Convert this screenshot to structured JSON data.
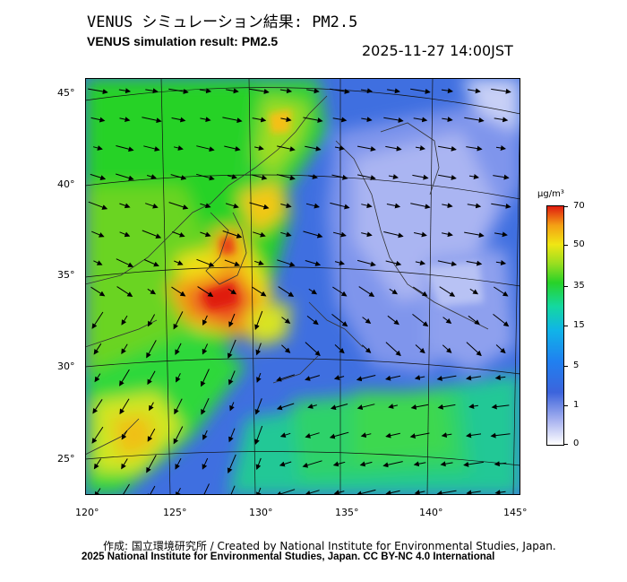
{
  "title_ja": "VENUS シミュレーション結果: PM2.5",
  "title_en": "VENUS simulation result: PM2.5",
  "timestamp": "2025-11-27 14:00JST",
  "lat_labels": [
    "45°",
    "40°",
    "35°",
    "30°",
    "25°"
  ],
  "lon_labels": [
    "120°",
    "125°",
    "130°",
    "135°",
    "140°",
    "145°"
  ],
  "colorbar": {
    "unit": "μg/m³",
    "ticks": [
      "70",
      "50",
      "35",
      "15",
      "5",
      "1",
      "0"
    ]
  },
  "footer": {
    "credit": "作成: 国立環境研究所 / Created by National Institute for Environmental Studies, Japan.",
    "license": "2025 National Institute for Environmental Studies, Japan. CC BY-NC 4.0 International"
  },
  "colors": {
    "ocean_low": "#4a6ce0",
    "high": "#e01c10",
    "mid_green": "#28d228"
  }
}
